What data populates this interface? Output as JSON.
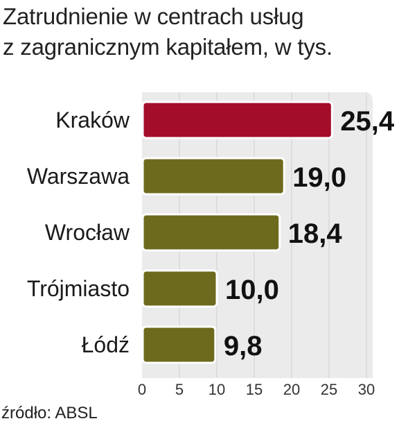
{
  "title_lines": [
    "Zatrudnienie w centrach usług",
    "z zagranicznym kapitałem, w tys."
  ],
  "source": "źródło: ABSL",
  "colors": {
    "highlight": "#a30d2a",
    "bar": "#6e6a1d",
    "panel": "#ebebeb",
    "grid": "#cfcfcf"
  },
  "chart_data": {
    "type": "bar",
    "orientation": "horizontal",
    "title": "Zatrudnienie w centrach usług z zagranicznym kapitałem, w tys.",
    "categories": [
      "Kraków",
      "Warszawa",
      "Wrocław",
      "Trójmiasto",
      "Łódź"
    ],
    "values": [
      25.4,
      19.0,
      18.4,
      10.0,
      9.8
    ],
    "value_labels": [
      "25,4",
      "19,0",
      "18,4",
      "10,0",
      "9,8"
    ],
    "highlighted_category": "Kraków",
    "xlim": [
      0,
      30
    ],
    "xticks": [
      "0",
      "5",
      "10",
      "15",
      "20",
      "25",
      "30"
    ],
    "grid": true,
    "xlabel": "",
    "ylabel": ""
  }
}
